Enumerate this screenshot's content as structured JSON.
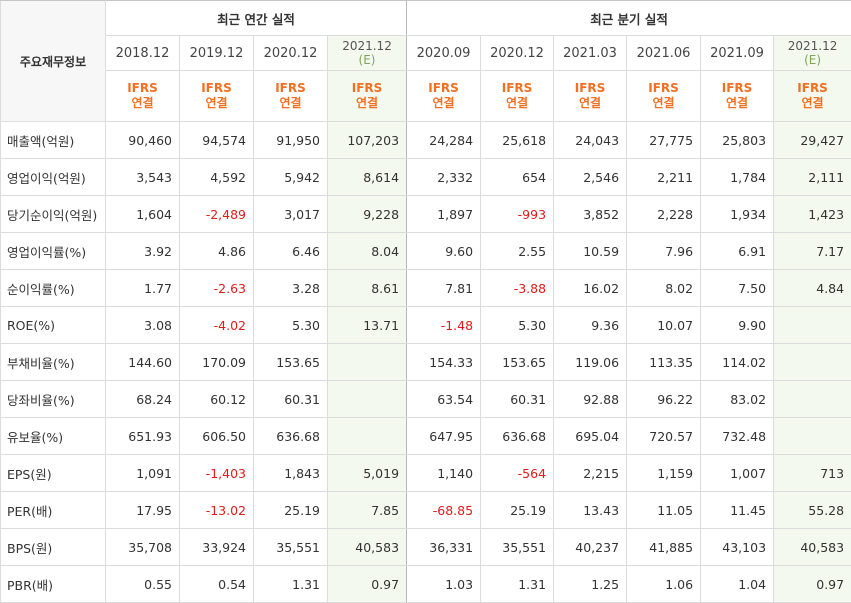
{
  "table": {
    "title": "주요재무정보",
    "annual_header": "최근 연간 실적",
    "quarter_header": "최근 분기 실적",
    "ifrs_label": "IFRS",
    "consolidated_label": "연결",
    "estimate_marker": "(E)",
    "periods": [
      {
        "label": "2018.12",
        "est": false
      },
      {
        "label": "2019.12",
        "est": false
      },
      {
        "label": "2020.12",
        "est": false
      },
      {
        "label": "2021.12",
        "est": true
      },
      {
        "label": "2020.09",
        "est": false
      },
      {
        "label": "2020.12",
        "est": false
      },
      {
        "label": "2021.03",
        "est": false
      },
      {
        "label": "2021.06",
        "est": false
      },
      {
        "label": "2021.09",
        "est": false
      },
      {
        "label": "2021.12",
        "est": true
      }
    ],
    "rows": [
      {
        "label": "매출액(억원)",
        "values": [
          "90,460",
          "94,574",
          "91,950",
          "107,203",
          "24,284",
          "25,618",
          "24,043",
          "27,775",
          "25,803",
          "29,427"
        ]
      },
      {
        "label": "영업이익(억원)",
        "values": [
          "3,543",
          "4,592",
          "5,942",
          "8,614",
          "2,332",
          "654",
          "2,546",
          "2,211",
          "1,784",
          "2,111"
        ]
      },
      {
        "label": "당기순이익(억원)",
        "values": [
          "1,604",
          "-2,489",
          "3,017",
          "9,228",
          "1,897",
          "-993",
          "3,852",
          "2,228",
          "1,934",
          "1,423"
        ]
      },
      {
        "label": "영업이익률(%)",
        "values": [
          "3.92",
          "4.86",
          "6.46",
          "8.04",
          "9.60",
          "2.55",
          "10.59",
          "7.96",
          "6.91",
          "7.17"
        ]
      },
      {
        "label": "순이익률(%)",
        "values": [
          "1.77",
          "-2.63",
          "3.28",
          "8.61",
          "7.81",
          "-3.88",
          "16.02",
          "8.02",
          "7.50",
          "4.84"
        ]
      },
      {
        "label": "ROE(%)",
        "values": [
          "3.08",
          "-4.02",
          "5.30",
          "13.71",
          "-1.48",
          "5.30",
          "9.36",
          "10.07",
          "9.90",
          ""
        ]
      },
      {
        "label": "부채비율(%)",
        "values": [
          "144.60",
          "170.09",
          "153.65",
          "",
          "154.33",
          "153.65",
          "119.06",
          "113.35",
          "114.02",
          ""
        ]
      },
      {
        "label": "당좌비율(%)",
        "values": [
          "68.24",
          "60.12",
          "60.31",
          "",
          "63.54",
          "60.31",
          "92.88",
          "96.22",
          "83.02",
          ""
        ]
      },
      {
        "label": "유보율(%)",
        "values": [
          "651.93",
          "606.50",
          "636.68",
          "",
          "647.95",
          "636.68",
          "695.04",
          "720.57",
          "732.48",
          ""
        ]
      },
      {
        "label": "EPS(원)",
        "values": [
          "1,091",
          "-1,403",
          "1,843",
          "5,019",
          "1,140",
          "-564",
          "2,215",
          "1,159",
          "1,007",
          "713"
        ]
      },
      {
        "label": "PER(배)",
        "values": [
          "17.95",
          "-13.02",
          "25.19",
          "7.85",
          "-68.85",
          "25.19",
          "13.43",
          "11.05",
          "11.45",
          "55.28"
        ]
      },
      {
        "label": "BPS(원)",
        "values": [
          "35,708",
          "33,924",
          "35,551",
          "40,583",
          "36,331",
          "35,551",
          "40,237",
          "41,885",
          "43,103",
          "40,583"
        ]
      },
      {
        "label": "PBR(배)",
        "values": [
          "0.55",
          "0.54",
          "1.31",
          "0.97",
          "1.03",
          "1.31",
          "1.25",
          "1.06",
          "1.04",
          "0.97"
        ]
      }
    ]
  }
}
